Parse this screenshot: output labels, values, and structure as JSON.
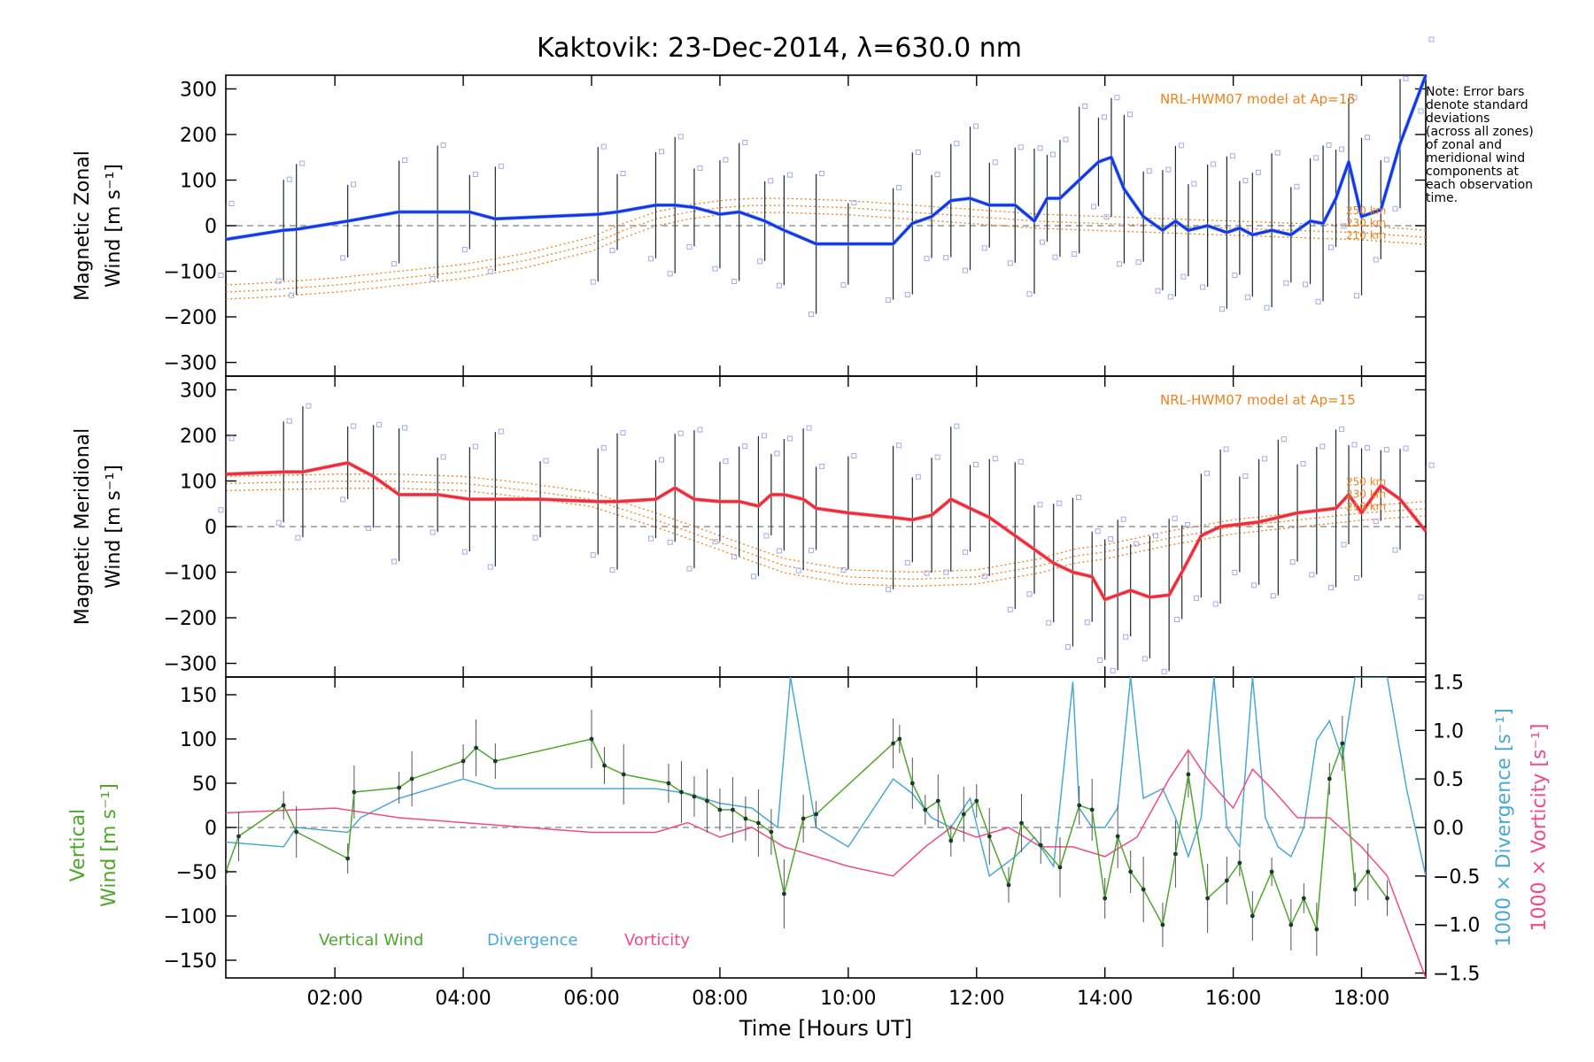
{
  "title": "Kaktovik: 23-Dec-2014, λ=630.0 nm",
  "note": [
    "Note: Error bars",
    "denote standard",
    "deviations",
    "(across all zones)",
    "of zonal and",
    "meridional wind",
    "components at",
    "each observation",
    "time."
  ],
  "colors": {
    "zonal": "#1e2cf0",
    "zonal_light": "#4aa0e0",
    "meridional": "#f02a3a",
    "meridional_light": "#f06a70",
    "model": "#f0801a",
    "vertical": "#4da82a",
    "divergence": "#4aa8d8",
    "vorticity": "#f04a8a",
    "points": "#a8a8e8",
    "errorbar": "#1a2a30",
    "zero": "#808080"
  },
  "chart_data": [
    {
      "type": "line",
      "panel": "zonal",
      "ylabel": [
        "Magnetic Zonal",
        "Wind [m s⁻¹]"
      ],
      "ylim": [
        -330,
        330
      ],
      "yticks": [
        "300",
        "200",
        "100",
        "0",
        "−100",
        "−200",
        "−300"
      ],
      "ytick_values": [
        300,
        200,
        100,
        0,
        -100,
        -200,
        -300
      ],
      "model_label": "NRL-HWM07 model at Ap=15",
      "model_alt_labels": [
        "250 km",
        "230 km",
        "210 km"
      ],
      "series": [
        {
          "name": "zonal",
          "x": [
            0.3,
            1.2,
            1.4,
            2.2,
            3.0,
            3.6,
            4.1,
            4.5,
            6.1,
            6.4,
            7.0,
            7.3,
            7.6,
            8.0,
            8.3,
            8.7,
            9.0,
            9.5,
            10.0,
            10.7,
            11.0,
            11.3,
            11.6,
            11.9,
            12.2,
            12.6,
            12.9,
            13.1,
            13.3,
            13.6,
            13.9,
            14.1,
            14.3,
            14.6,
            14.9,
            15.1,
            15.3,
            15.6,
            15.9,
            16.1,
            16.3,
            16.6,
            16.9,
            17.2,
            17.4,
            17.6,
            17.8,
            18.0,
            18.3,
            18.6,
            19.0
          ],
          "y": [
            -30,
            -10,
            -8,
            10,
            30,
            30,
            30,
            15,
            25,
            30,
            45,
            45,
            40,
            25,
            30,
            10,
            -10,
            -40,
            -40,
            -40,
            5,
            20,
            55,
            60,
            45,
            45,
            10,
            60,
            60,
            100,
            140,
            150,
            80,
            20,
            -10,
            10,
            -10,
            0,
            -15,
            -5,
            -20,
            -10,
            -20,
            10,
            5,
            60,
            140,
            20,
            35,
            180,
            330
          ]
        },
        {
          "name": "model",
          "x": [
            0.3,
            1.0,
            2.0,
            3.0,
            4.0,
            5.0,
            6.0,
            6.5,
            7.0,
            7.5,
            8.0,
            8.5,
            9.0,
            10.0,
            11.0,
            12.0,
            13.0,
            14.0,
            15.0,
            16.0,
            17.0,
            18.0,
            19.0
          ],
          "y": [
            -130,
            -125,
            -115,
            -100,
            -85,
            -60,
            -25,
            5,
            30,
            45,
            55,
            60,
            60,
            55,
            45,
            35,
            25,
            20,
            15,
            10,
            5,
            0,
            -10
          ]
        }
      ]
    },
    {
      "type": "line",
      "panel": "meridional",
      "ylabel": [
        "Magnetic Meridional",
        "Wind [m s⁻¹]"
      ],
      "ylim": [
        -330,
        330
      ],
      "yticks": [
        "300",
        "200",
        "100",
        "0",
        "−100",
        "−200",
        "−300"
      ],
      "ytick_values": [
        300,
        200,
        100,
        0,
        -100,
        -200,
        -300
      ],
      "model_label": "NRL-HWM07 model at Ap=15",
      "model_alt_labels": [
        "250 km",
        "230 km",
        "210 km"
      ],
      "series": [
        {
          "name": "meridional",
          "x": [
            0.3,
            1.2,
            1.5,
            2.2,
            2.6,
            3.0,
            3.6,
            4.1,
            4.5,
            5.2,
            6.1,
            6.4,
            7.0,
            7.3,
            7.6,
            8.0,
            8.3,
            8.6,
            8.8,
            9.0,
            9.3,
            9.5,
            10.0,
            10.7,
            11.0,
            11.3,
            11.6,
            11.9,
            12.2,
            12.6,
            12.9,
            13.2,
            13.5,
            13.8,
            14.0,
            14.2,
            14.4,
            14.7,
            15.0,
            15.2,
            15.5,
            15.8,
            16.1,
            16.4,
            16.7,
            17.0,
            17.3,
            17.6,
            17.8,
            18.0,
            18.3,
            18.6,
            19.0
          ],
          "y": [
            115,
            120,
            120,
            140,
            110,
            70,
            70,
            60,
            60,
            60,
            55,
            55,
            60,
            85,
            60,
            55,
            55,
            45,
            70,
            70,
            60,
            40,
            30,
            20,
            15,
            25,
            60,
            40,
            20,
            -20,
            -50,
            -80,
            -100,
            -110,
            -160,
            -150,
            -140,
            -155,
            -150,
            -100,
            -20,
            0,
            5,
            10,
            20,
            30,
            35,
            40,
            70,
            30,
            90,
            60,
            -10
          ]
        },
        {
          "name": "model",
          "x": [
            0.3,
            1.0,
            2.0,
            3.0,
            4.0,
            5.0,
            6.0,
            7.0,
            8.0,
            9.0,
            10.0,
            11.0,
            12.0,
            13.0,
            13.5,
            14.0,
            15.0,
            16.0,
            17.0,
            18.0,
            19.0
          ],
          "y": [
            110,
            112,
            115,
            115,
            110,
            95,
            75,
            30,
            -20,
            -70,
            -95,
            -100,
            -95,
            -70,
            -50,
            -40,
            -10,
            15,
            30,
            45,
            55
          ]
        }
      ]
    },
    {
      "type": "line",
      "panel": "vertical",
      "ylabel_left": [
        "Vertical",
        "Wind [m s⁻¹]"
      ],
      "ylabel_right_1": "1000 × Divergence [s⁻¹]",
      "ylabel_right_2": "1000 × Vorticity [s⁻¹]",
      "ylim": [
        -170,
        170
      ],
      "ylim_right": [
        -1.55,
        1.55
      ],
      "yticks": [
        "150",
        "100",
        "50",
        "0",
        "−50",
        "−100",
        "−150"
      ],
      "ytick_values": [
        150,
        100,
        50,
        0,
        -50,
        -100,
        -150
      ],
      "yticks_right": [
        "1.5",
        "1.0",
        "0.5",
        "0.0",
        "−0.5",
        "−1.0",
        "−1.5"
      ],
      "ytick_values_right": [
        1.5,
        1.0,
        0.5,
        0.0,
        -0.5,
        -1.0,
        -1.5
      ],
      "xlabel": "Time [Hours UT]",
      "xlim": [
        0.3,
        19.0
      ],
      "xticks": [
        "02:00",
        "04:00",
        "06:00",
        "08:00",
        "10:00",
        "12:00",
        "14:00",
        "16:00",
        "18:00"
      ],
      "xtick_values": [
        2,
        4,
        6,
        8,
        10,
        12,
        14,
        16,
        18
      ],
      "legend": [
        "Vertical Wind",
        "Divergence",
        "Vorticity"
      ],
      "series": [
        {
          "name": "Vertical Wind",
          "x": [
            0.3,
            0.5,
            1.2,
            1.4,
            2.2,
            2.3,
            3.0,
            3.2,
            4.0,
            4.2,
            4.5,
            6.0,
            6.2,
            6.5,
            7.2,
            7.4,
            7.6,
            7.8,
            8.0,
            8.2,
            8.4,
            8.6,
            8.8,
            9.0,
            9.3,
            9.5,
            10.7,
            10.8,
            11.0,
            11.2,
            11.4,
            11.6,
            11.8,
            12.0,
            12.2,
            12.5,
            12.7,
            13.0,
            13.3,
            13.6,
            13.8,
            14.0,
            14.2,
            14.4,
            14.6,
            14.9,
            15.1,
            15.3,
            15.6,
            15.9,
            16.1,
            16.3,
            16.6,
            16.9,
            17.1,
            17.3,
            17.5,
            17.7,
            17.9,
            18.1,
            18.4
          ],
          "y": [
            -50,
            -10,
            25,
            -5,
            -35,
            40,
            45,
            55,
            75,
            90,
            75,
            100,
            70,
            60,
            50,
            40,
            35,
            30,
            20,
            20,
            10,
            5,
            -5,
            -75,
            10,
            15,
            95,
            100,
            50,
            20,
            30,
            -15,
            15,
            30,
            -10,
            -65,
            5,
            -20,
            -45,
            25,
            20,
            -80,
            -10,
            -50,
            -70,
            -110,
            -30,
            60,
            -80,
            -60,
            -40,
            -100,
            -50,
            -110,
            -80,
            -115,
            55,
            95,
            -70,
            -50,
            -80
          ]
        },
        {
          "name": "Divergence",
          "x": [
            0.3,
            1.2,
            1.4,
            2.2,
            2.4,
            3.0,
            4.0,
            4.5,
            5.0,
            6.0,
            6.5,
            7.0,
            7.5,
            8.0,
            8.5,
            8.9,
            9.1,
            9.5,
            10.0,
            10.7,
            11.0,
            11.3,
            11.6,
            11.9,
            12.2,
            12.6,
            12.9,
            13.2,
            13.5,
            13.6,
            13.8,
            14.0,
            14.2,
            14.4,
            14.6,
            14.9,
            15.1,
            15.3,
            15.5,
            15.7,
            15.9,
            16.1,
            16.3,
            16.5,
            16.7,
            16.9,
            17.1,
            17.3,
            17.5,
            17.7,
            17.9,
            18.1,
            18.4,
            18.7,
            19.0
          ],
          "y": [
            -0.15,
            -0.2,
            0.0,
            -0.05,
            0.1,
            0.3,
            0.5,
            0.4,
            0.4,
            0.4,
            0.4,
            0.4,
            0.35,
            0.25,
            0.2,
            0.0,
            1.6,
            0.0,
            -0.2,
            0.5,
            0.35,
            0.1,
            0.0,
            0.3,
            -0.5,
            -0.3,
            -0.1,
            -0.4,
            1.5,
            0.2,
            0.0,
            0.0,
            0.2,
            1.6,
            0.3,
            0.4,
            0.1,
            -0.3,
            0.1,
            1.6,
            0.0,
            -0.2,
            1.6,
            0.1,
            -0.2,
            -0.3,
            0.0,
            0.9,
            1.1,
            0.7,
            1.6,
            1.6,
            1.6,
            0.4,
            -0.5
          ]
        },
        {
          "name": "Vorticity",
          "x": [
            0.3,
            2.0,
            3.0,
            4.0,
            5.0,
            6.0,
            7.0,
            7.5,
            8.0,
            8.5,
            9.0,
            9.5,
            10.0,
            10.7,
            11.2,
            11.6,
            12.0,
            12.5,
            13.0,
            13.5,
            14.0,
            14.5,
            15.0,
            15.3,
            15.6,
            16.0,
            16.3,
            16.6,
            17.0,
            17.5,
            18.0,
            18.4,
            19.0
          ],
          "y": [
            0.15,
            0.2,
            0.1,
            0.05,
            0.0,
            -0.05,
            -0.05,
            0.05,
            -0.1,
            0.0,
            -0.2,
            -0.3,
            -0.4,
            -0.5,
            -0.2,
            0.0,
            -0.1,
            0.0,
            -0.2,
            -0.2,
            -0.3,
            -0.1,
            0.5,
            0.8,
            0.5,
            0.2,
            0.6,
            0.4,
            0.1,
            0.1,
            -0.2,
            -0.5,
            -1.6
          ]
        }
      ]
    }
  ]
}
